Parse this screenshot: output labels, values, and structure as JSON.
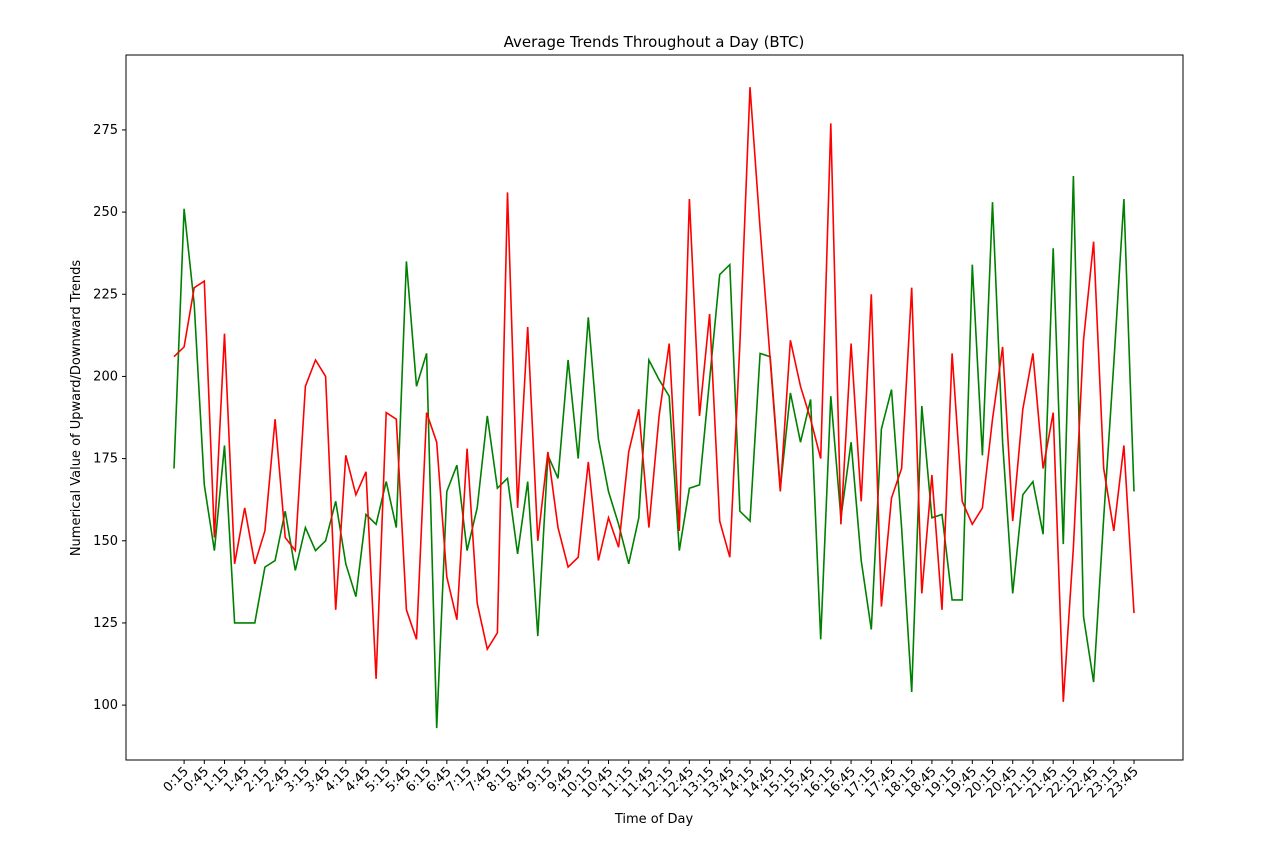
{
  "chart_data": {
    "type": "line",
    "title": "Average Trends Throughout a Day (BTC)",
    "x_label": "Time of Day",
    "y_label": "Numerical Value of Upward/Downward Trends",
    "categories": [
      null,
      "0:15",
      null,
      "0:45",
      null,
      "1:15",
      null,
      "1:45",
      null,
      "2:15",
      null,
      "2:45",
      null,
      "3:15",
      null,
      "3:45",
      null,
      "4:15",
      null,
      "4:45",
      null,
      "5:15",
      null,
      "5:45",
      null,
      "6:15",
      null,
      "6:45",
      null,
      "7:15",
      null,
      "7:45",
      null,
      "8:15",
      null,
      "8:45",
      null,
      "9:15",
      null,
      "9:45",
      null,
      "10:15",
      null,
      "10:45",
      null,
      "11:15",
      null,
      "11:45",
      null,
      "12:15",
      null,
      "12:45",
      null,
      "13:15",
      null,
      "13:45",
      null,
      "14:15",
      null,
      "14:45",
      null,
      "15:15",
      null,
      "15:45",
      null,
      "16:15",
      null,
      "16:45",
      null,
      "17:15",
      null,
      "17:45",
      null,
      "18:15",
      null,
      "18:45",
      null,
      "19:15",
      null,
      "19:45",
      null,
      "20:15",
      null,
      "20:45",
      null,
      "21:15",
      null,
      "21:45",
      null,
      "22:15",
      null,
      "22:45",
      null,
      "23:15",
      null,
      "23:45"
    ],
    "series": [
      {
        "color": "#008000",
        "values": [
          172,
          251,
          222,
          167,
          147,
          179,
          125,
          125,
          125,
          142,
          144,
          159,
          141,
          154,
          147,
          150,
          162,
          143,
          133,
          158,
          155,
          168,
          154,
          235,
          197,
          207,
          93,
          165,
          173,
          147,
          160,
          188,
          166,
          169,
          146,
          168,
          121,
          176,
          169,
          205,
          175,
          218,
          181,
          165,
          155,
          143,
          157,
          205,
          199,
          194,
          147,
          166,
          167,
          199,
          231,
          234,
          159,
          156,
          207,
          206,
          166,
          195,
          180,
          193,
          120,
          194,
          157,
          180,
          144,
          123,
          184,
          196,
          154,
          104,
          191,
          157,
          158,
          132,
          132,
          234,
          176,
          253,
          180,
          134,
          164,
          168,
          152,
          239,
          149,
          261,
          127,
          107,
          157,
          204,
          254,
          165
        ]
      },
      {
        "color": "#ff0000",
        "values": [
          206,
          209,
          227,
          229,
          151,
          213,
          143,
          160,
          143,
          153,
          187,
          151,
          147,
          197,
          205,
          200,
          129,
          176,
          164,
          171,
          108,
          189,
          187,
          129,
          120,
          189,
          180,
          139,
          126,
          178,
          131,
          117,
          122,
          256,
          160,
          215,
          150,
          177,
          154,
          142,
          145,
          174,
          144,
          157,
          148,
          177,
          190,
          154,
          188,
          210,
          153,
          254,
          188,
          219,
          156,
          145,
          210,
          288,
          245,
          205,
          165,
          211,
          197,
          187,
          175,
          277,
          155,
          210,
          162,
          225,
          130,
          163,
          172,
          227,
          134,
          170,
          129,
          207,
          162,
          155,
          160,
          187,
          209,
          156,
          190,
          207,
          172,
          189,
          101,
          148,
          211,
          241,
          172,
          153,
          179,
          128
        ]
      }
    ],
    "ylim": [
      83.3,
      297.8
    ],
    "yticks": [
      100,
      125,
      150,
      175,
      200,
      225,
      250,
      275
    ]
  }
}
